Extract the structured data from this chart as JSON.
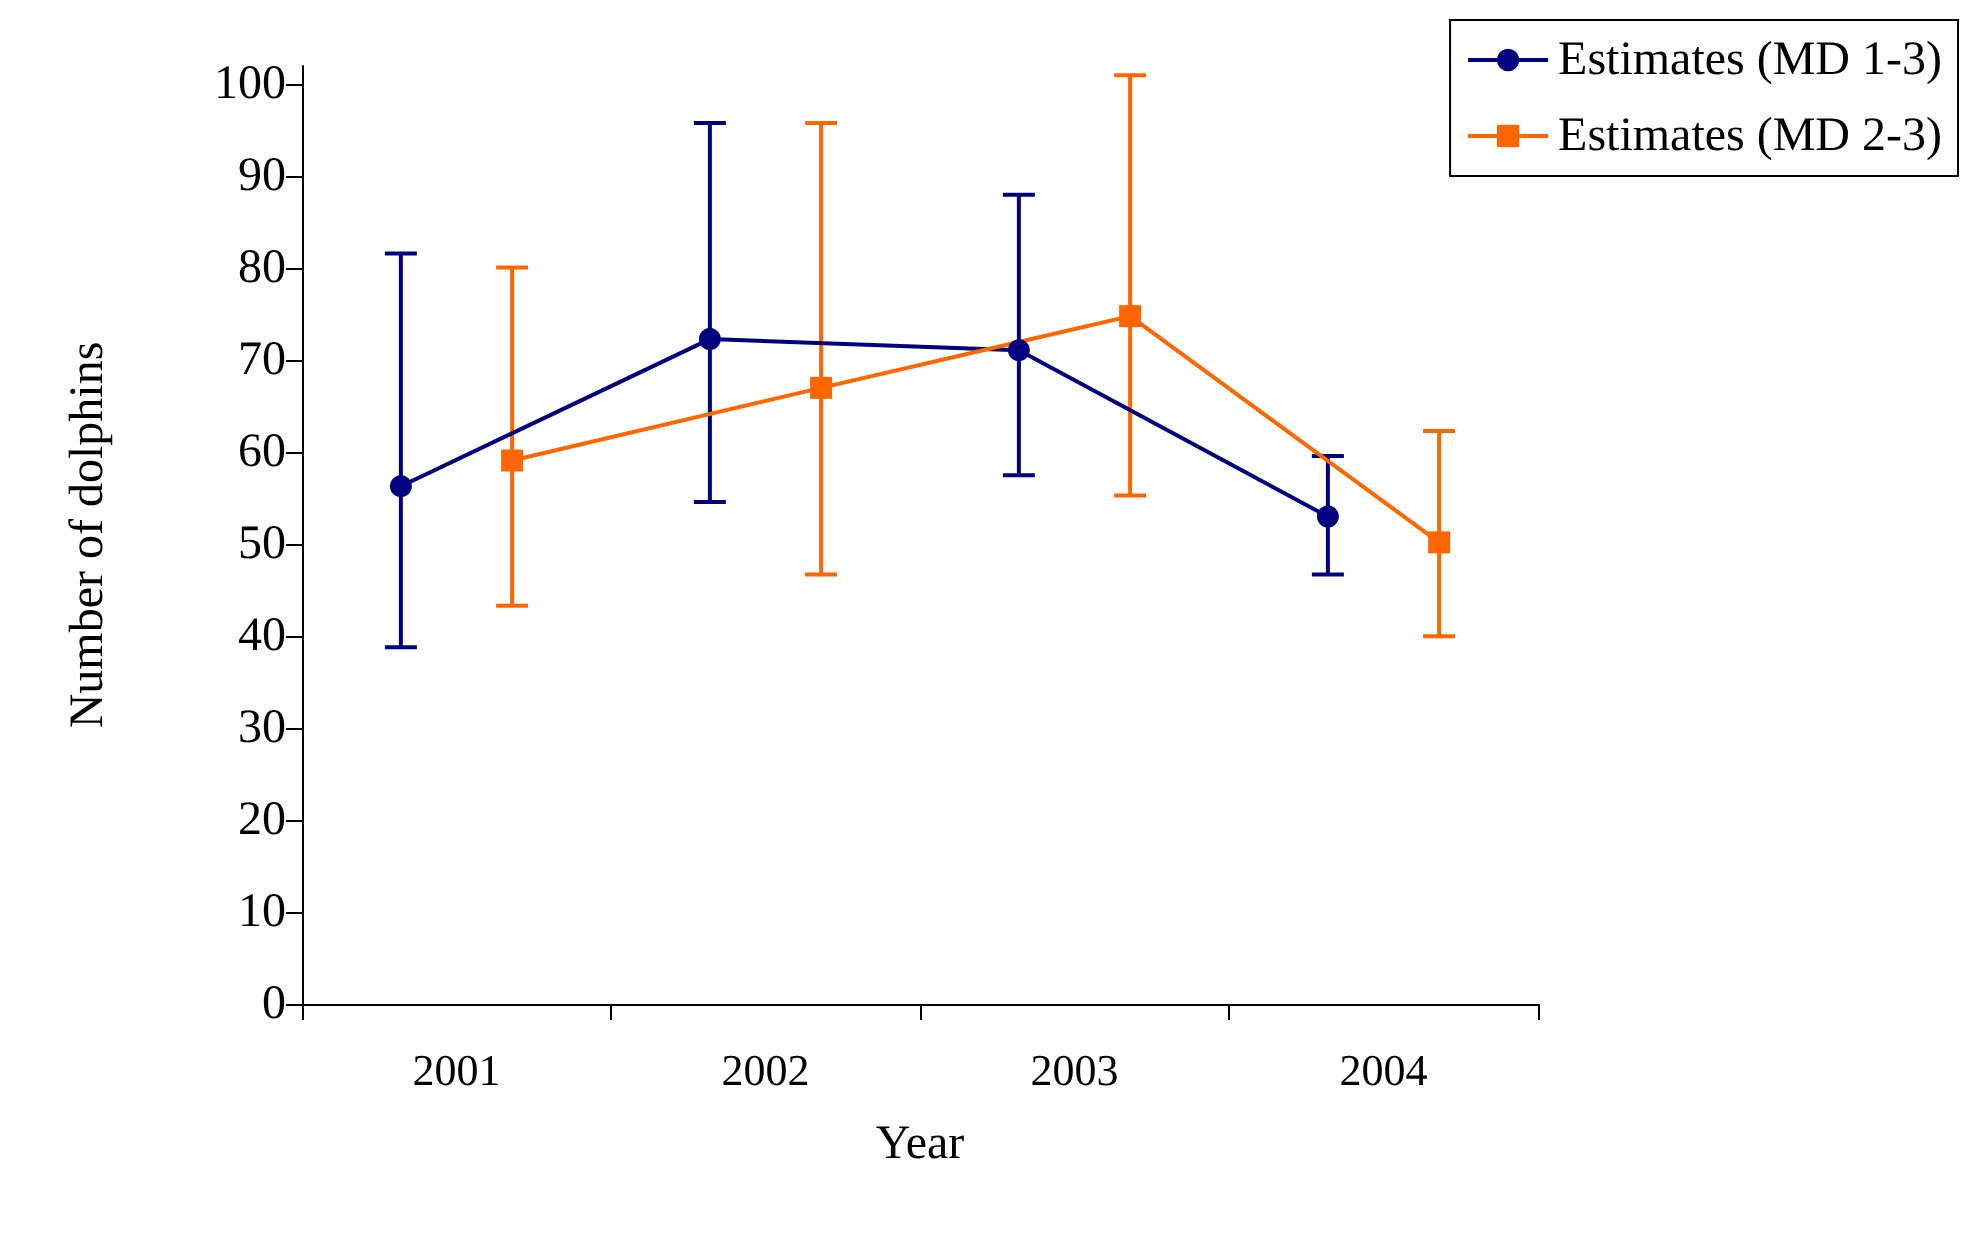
{
  "chart_data": {
    "type": "line",
    "xlabel": "Year",
    "ylabel": "Number of dolphins",
    "categories": [
      "2001",
      "2002",
      "2003",
      "2004"
    ],
    "series": [
      {
        "name": "Estimates (MD 1-3)",
        "color": "#000080",
        "marker": "circle",
        "values": [
          56.3,
          72.3,
          71.1,
          53
        ],
        "errors": [
          [
            38.8,
            81.6
          ],
          [
            54.6,
            95.8
          ],
          [
            57.5,
            88
          ],
          [
            46.7,
            59.6
          ]
        ]
      },
      {
        "name": "Estimates (MD 2-3)",
        "color": "#ff6600",
        "marker": "square",
        "values": [
          59.1,
          67,
          74.8,
          50.2
        ],
        "errors": [
          [
            43.3,
            80.1
          ],
          [
            46.7,
            95.8
          ],
          [
            55.3,
            101
          ],
          [
            40,
            62.3
          ]
        ]
      }
    ],
    "ylim": [
      0,
      102
    ],
    "yticks": [
      0,
      10,
      20,
      30,
      40,
      50,
      60,
      70,
      80,
      90,
      100
    ],
    "grid": false,
    "legend": "top right"
  }
}
